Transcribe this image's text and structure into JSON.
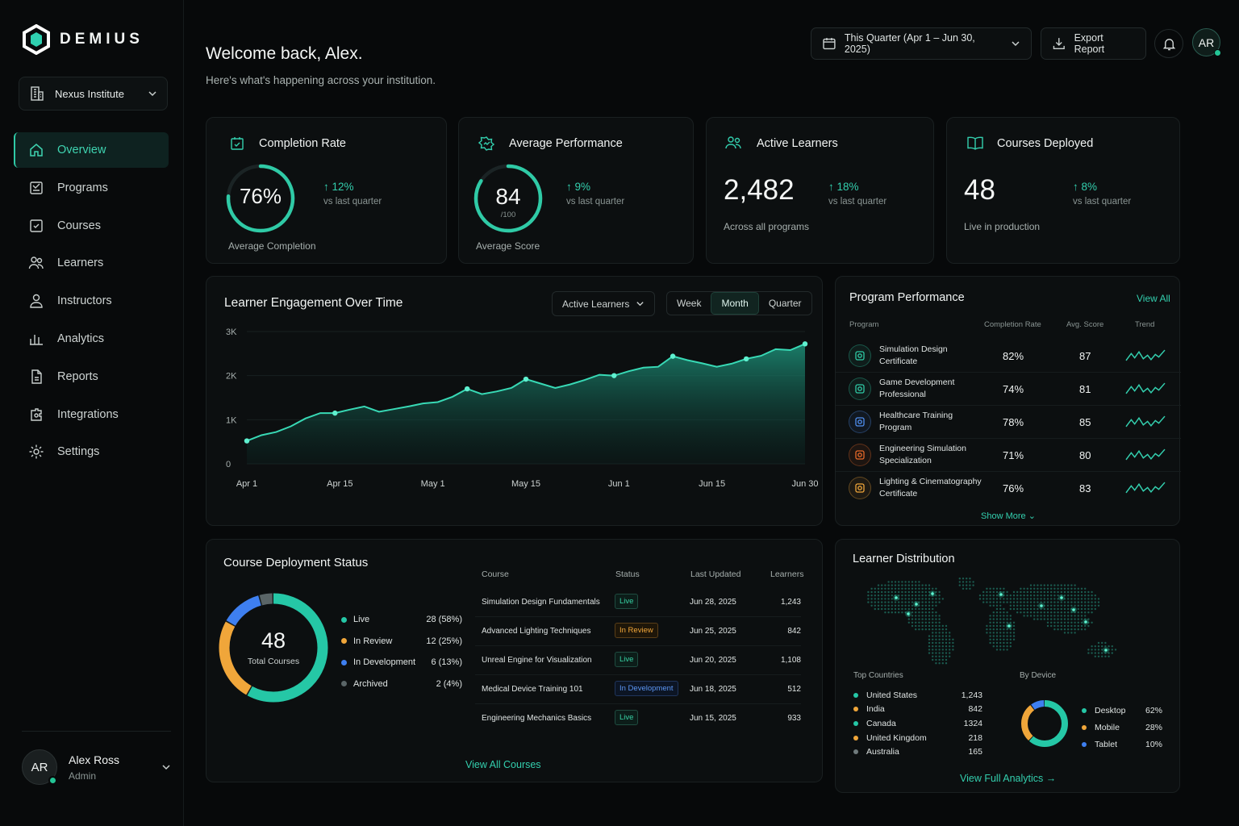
{
  "brand": {
    "name": "DEMIUS"
  },
  "institution": {
    "name": "Nexus Institute"
  },
  "nav": [
    {
      "label": "Overview",
      "icon": "home-icon"
    },
    {
      "label": "Programs",
      "icon": "programs-icon"
    },
    {
      "label": "Courses",
      "icon": "courses-icon"
    },
    {
      "label": "Learners",
      "icon": "learners-icon"
    },
    {
      "label": "Instructors",
      "icon": "instructor-icon"
    },
    {
      "label": "Analytics",
      "icon": "analytics-icon"
    },
    {
      "label": "Reports",
      "icon": "reports-icon"
    },
    {
      "label": "Integrations",
      "icon": "integrations-icon"
    },
    {
      "label": "Settings",
      "icon": "gear-icon"
    }
  ],
  "user": {
    "initials": "AR",
    "name": "Alex Ross",
    "role": "Admin"
  },
  "header": {
    "title": "Welcome back, Alex.",
    "subtitle": "Here's what's happening across your institution.",
    "date_range": "This Quarter (Apr 1 – Jun 30, 2025)",
    "export_label": "Export Report",
    "avatar": "AR"
  },
  "kpis": {
    "completion": {
      "title": "Completion Rate",
      "value": "76%",
      "ring": 0.76,
      "delta": "12%",
      "delta_note": "vs last quarter",
      "caption": "Average Completion"
    },
    "performance": {
      "title": "Average Performance",
      "value": "84",
      "unit": "/100",
      "ring": 0.84,
      "delta": "9%",
      "delta_note": "vs last quarter",
      "caption": "Average Score"
    },
    "learners": {
      "title": "Active Learners",
      "value": "2,482",
      "delta": "18%",
      "delta_note": "vs last quarter",
      "caption": "Across all programs"
    },
    "courses": {
      "title": "Courses Deployed",
      "value": "48",
      "delta": "8%",
      "delta_note": "vs last quarter",
      "caption": "Live in production"
    }
  },
  "engagement": {
    "title": "Learner Engagement Over Time",
    "metric": "Active Learners",
    "periods": [
      "Week",
      "Month",
      "Quarter"
    ],
    "active_period": "Month"
  },
  "chart_data": {
    "type": "area",
    "title": "Learner Engagement Over Time",
    "series_name": "Active Learners",
    "x_labels": [
      "Apr 1",
      "Apr 15",
      "May 1",
      "May 15",
      "Jun 1",
      "Jun 15",
      "Jun 30"
    ],
    "y_ticks": [
      "0",
      "1K",
      "2K",
      "3K"
    ],
    "ylim": [
      0,
      3000
    ],
    "values": [
      520,
      650,
      720,
      850,
      1030,
      1150,
      1150,
      1230,
      1300,
      1180,
      1240,
      1300,
      1370,
      1400,
      1520,
      1700,
      1580,
      1640,
      1720,
      1920,
      1820,
      1720,
      1800,
      1900,
      2020,
      2000,
      2100,
      2180,
      2200,
      2440,
      2350,
      2280,
      2200,
      2270,
      2380,
      2450,
      2600,
      2580,
      2720
    ],
    "markers": [
      0,
      6,
      15,
      19,
      25,
      29,
      34,
      38
    ]
  },
  "programs": {
    "title": "Program Performance",
    "view_all": "View All",
    "columns": [
      "Program",
      "Completion Rate",
      "Avg. Score",
      "Trend"
    ],
    "rows": [
      {
        "name1": "Simulation Design",
        "name2": "Certificate",
        "rate": "82%",
        "score": "87",
        "color": "#2fcaa6"
      },
      {
        "name1": "Game Development",
        "name2": "Professional",
        "rate": "74%",
        "score": "81",
        "color": "#2fcaa6"
      },
      {
        "name1": "Healthcare Training",
        "name2": "Program",
        "rate": "78%",
        "score": "85",
        "color": "#4f8ff0"
      },
      {
        "name1": "Engineering Simulation",
        "name2": "Specialization",
        "rate": "71%",
        "score": "80",
        "color": "#e86a2a"
      },
      {
        "name1": "Lighting & Cinematography",
        "name2": "Certificate",
        "rate": "76%",
        "score": "83",
        "color": "#f0a63a"
      }
    ],
    "show_more": "Show More"
  },
  "deployment": {
    "title": "Course Deployment Status",
    "total": "48",
    "total_label": "Total Courses",
    "legend": [
      {
        "label": "Live",
        "value": "28 (58%)",
        "count": 28,
        "color": "#25c7a6"
      },
      {
        "label": "In Review",
        "value": "12 (25%)",
        "count": 12,
        "color": "#f0a63a"
      },
      {
        "label": "In Development",
        "value": "6 (13%)",
        "count": 6,
        "color": "#3e7ff0"
      },
      {
        "label": "Archived",
        "value": "2 (4%)",
        "count": 2,
        "color": "#5a6567"
      }
    ],
    "columns": [
      "Course",
      "Status",
      "Last Updated",
      "Learners"
    ],
    "rows": [
      {
        "course": "Simulation Design Fundamentals",
        "status": "Live",
        "cls": "live",
        "updated": "Jun 28, 2025",
        "learners": "1,243"
      },
      {
        "course": "Advanced Lighting Techniques",
        "status": "In Review",
        "cls": "review",
        "updated": "Jun 25, 2025",
        "learners": "842"
      },
      {
        "course": "Unreal Engine for Visualization",
        "status": "Live",
        "cls": "live",
        "updated": "Jun 20, 2025",
        "learners": "1,108"
      },
      {
        "course": "Medical Device Training 101",
        "status": "In Development",
        "cls": "dev",
        "updated": "Jun 18, 2025",
        "learners": "512"
      },
      {
        "course": "Engineering Mechanics Basics",
        "status": "Live",
        "cls": "live",
        "updated": "Jun 15, 2025",
        "learners": "933"
      }
    ],
    "view_all": "View All Courses"
  },
  "distribution": {
    "title": "Learner Distribution",
    "countries_label": "Top Countries",
    "countries": [
      {
        "name": "United States",
        "value": "1,243",
        "color": "#25c7a6"
      },
      {
        "name": "India",
        "value": "842",
        "color": "#f0a63a"
      },
      {
        "name": "Canada",
        "value": "1324",
        "color": "#25c7a6"
      },
      {
        "name": "United Kingdom",
        "value": "218",
        "color": "#f0a63a"
      },
      {
        "name": "Australia",
        "value": "165",
        "color": "#6f7a7c"
      }
    ],
    "device_label": "By Device",
    "devices": [
      {
        "name": "Desktop",
        "value": "62%",
        "share": 0.62,
        "color": "#25c7a6"
      },
      {
        "name": "Mobile",
        "value": "28%",
        "share": 0.28,
        "color": "#f0a63a"
      },
      {
        "name": "Tablet",
        "value": "10%",
        "share": 0.1,
        "color": "#3e7ff0"
      }
    ],
    "view_full": "View Full Analytics"
  }
}
